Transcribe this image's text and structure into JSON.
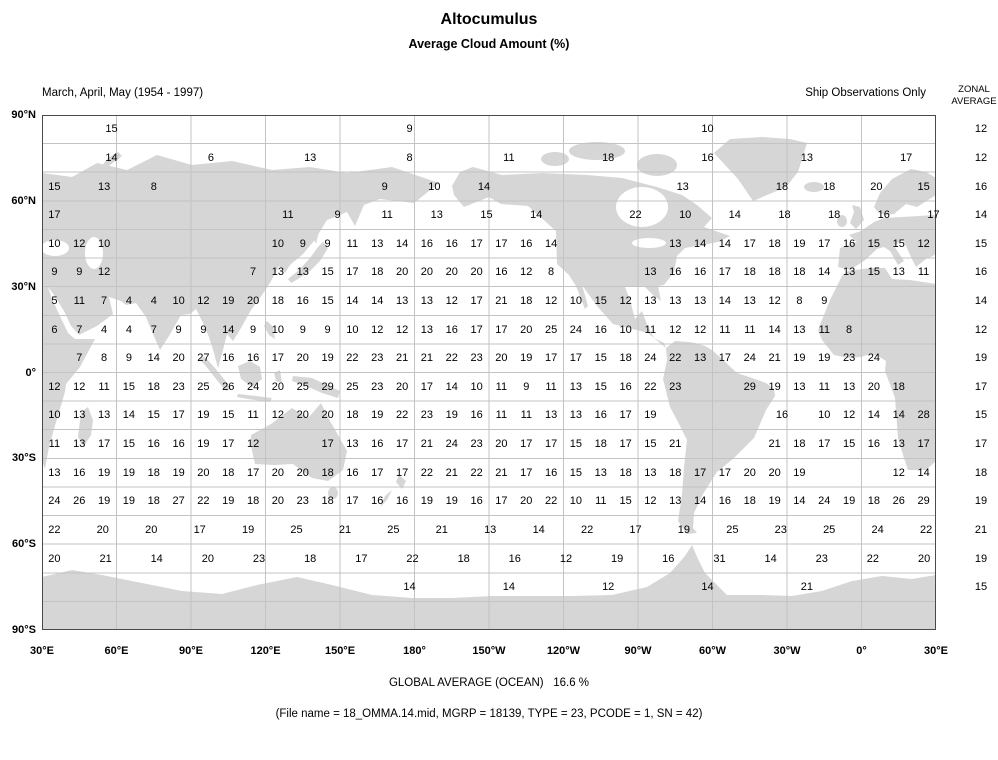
{
  "header": {
    "title": "Altocumulus",
    "subtitle": "Average Cloud Amount (%)",
    "period_label": "March, April, May (1954 - 1997)",
    "source_label": "Ship Observations Only",
    "zonal_header_line1": "ZONAL",
    "zonal_header_line2": "AVERAGE"
  },
  "footer": {
    "global_average": "GLOBAL AVERAGE (OCEAN)   16.6 %",
    "file_info": "(File name = 18_OMMA.14.mid, MGRP = 18139, TYPE = 23, PCODE = 1, SN = 42)"
  },
  "chart_data": {
    "type": "heatmap",
    "title": "Altocumulus - Average Cloud Amount (%)",
    "units": "percent",
    "global_average_ocean_pct": 16.6,
    "grid_cell_deg": 10,
    "lon_start_deg_east": 30,
    "lat_tick_labels": [
      "90°N",
      "60°N",
      "30°N",
      "0°",
      "30°S",
      "60°S",
      "90°S"
    ],
    "lon_tick_labels": [
      "30°E",
      "60°E",
      "90°E",
      "120°E",
      "150°E",
      "180°",
      "150°W",
      "120°W",
      "90°W",
      "60°W",
      "30°W",
      "0°",
      "30°E"
    ],
    "rows": [
      {
        "lat_band": "85N",
        "zonal_average": 12,
        "clusters": [
          {
            "start": 2.3,
            "step": 12,
            "values": [
              15,
              9,
              10
            ]
          }
        ]
      },
      {
        "lat_band": "75N",
        "zonal_average": 12,
        "clusters": [
          {
            "start": 2.3,
            "step": 4,
            "values": [
              14,
              6,
              13,
              8,
              11,
              18,
              16,
              13,
              17
            ]
          }
        ]
      },
      {
        "lat_band": "65N",
        "zonal_average": 16,
        "clusters": [
          {
            "start": 0,
            "step": 2,
            "values": [
              15,
              13,
              8
            ]
          },
          {
            "start": 13.3,
            "step": 2,
            "values": [
              9,
              10,
              14
            ]
          },
          {
            "start": 25.3,
            "values": [
              13
            ]
          },
          {
            "start": 29.3,
            "step": 1.9,
            "values": [
              18,
              18,
              20,
              15
            ]
          }
        ]
      },
      {
        "lat_band": "55N",
        "zonal_average": 14,
        "clusters": [
          {
            "start": 0,
            "values": [
              17
            ]
          },
          {
            "start": 9.4,
            "step": 2,
            "values": [
              11,
              9,
              11,
              13,
              15,
              14
            ]
          },
          {
            "start": 23.4,
            "step": 2,
            "values": [
              22,
              10,
              14,
              18,
              18,
              16,
              17
            ]
          }
        ]
      },
      {
        "lat_band": "45N",
        "zonal_average": 15,
        "clusters": [
          {
            "start": 0,
            "values": [
              10,
              12,
              10
            ]
          },
          {
            "start": 9,
            "values": [
              10,
              9,
              9,
              11,
              13,
              14,
              16,
              16,
              17,
              17,
              16,
              14
            ]
          },
          {
            "start": 25,
            "values": [
              13,
              14,
              14,
              17,
              18,
              19,
              17,
              16,
              15,
              15,
              12
            ]
          }
        ]
      },
      {
        "lat_band": "35N",
        "zonal_average": 16,
        "clusters": [
          {
            "start": 0,
            "values": [
              9,
              9,
              12
            ]
          },
          {
            "start": 8,
            "values": [
              7,
              13,
              13,
              15,
              17,
              18,
              20,
              20,
              20,
              20,
              16,
              12,
              8
            ]
          },
          {
            "start": 24,
            "values": [
              13,
              16,
              16,
              17,
              18,
              18,
              18,
              14,
              13,
              15,
              13,
              11
            ]
          }
        ]
      },
      {
        "lat_band": "25N",
        "zonal_average": 14,
        "clusters": [
          {
            "start": 0,
            "values": [
              5,
              11,
              7,
              4,
              4,
              10,
              12,
              19,
              20,
              18,
              16,
              15,
              14,
              14,
              13,
              13,
              12,
              17,
              21,
              18,
              12,
              10,
              15,
              12,
              13,
              13,
              13,
              14,
              13,
              12,
              8,
              9
            ]
          }
        ]
      },
      {
        "lat_band": "15N",
        "zonal_average": 12,
        "clusters": [
          {
            "start": 0,
            "values": [
              6,
              7,
              4,
              4,
              7,
              9,
              9,
              14,
              9,
              10,
              9,
              9,
              10,
              12,
              12,
              13,
              16,
              17,
              17,
              20,
              25,
              24,
              16,
              10,
              11,
              12,
              12,
              11,
              11,
              14,
              13,
              11,
              8
            ]
          }
        ]
      },
      {
        "lat_band": "5N",
        "zonal_average": 19,
        "clusters": [
          {
            "start": 1,
            "values": [
              7,
              8,
              9,
              14,
              20,
              27,
              16,
              16,
              17,
              20,
              19,
              22,
              23,
              21,
              21,
              22,
              23,
              20,
              19,
              17,
              17,
              15,
              18,
              24,
              22,
              13,
              17,
              24,
              21,
              19,
              19,
              23,
              24
            ]
          }
        ]
      },
      {
        "lat_band": "5S",
        "zonal_average": 17,
        "clusters": [
          {
            "start": 0,
            "values": [
              12,
              12,
              11,
              15,
              18,
              23,
              25,
              26,
              24,
              20,
              25,
              29,
              25,
              23,
              20,
              17,
              14,
              10,
              11,
              9,
              11,
              13,
              15,
              16,
              22,
              23
            ]
          },
          {
            "start": 28,
            "values": [
              29,
              19,
              13,
              11,
              13,
              20,
              18
            ]
          }
        ]
      },
      {
        "lat_band": "15S",
        "zonal_average": 15,
        "clusters": [
          {
            "start": 0,
            "values": [
              10,
              13,
              13,
              14,
              15,
              17,
              19,
              15,
              11,
              12,
              20,
              20,
              18,
              19,
              22,
              23,
              19,
              16,
              11,
              11,
              13,
              13,
              16,
              17,
              19
            ]
          },
          {
            "start": 29.3,
            "values": [
              16
            ]
          },
          {
            "start": 31,
            "values": [
              10,
              12,
              14,
              14,
              28
            ]
          }
        ]
      },
      {
        "lat_band": "25S",
        "zonal_average": 17,
        "clusters": [
          {
            "start": 0,
            "values": [
              11,
              13,
              17,
              15,
              16,
              16,
              19,
              17,
              12
            ]
          },
          {
            "start": 11,
            "values": [
              17,
              13,
              16,
              17,
              21,
              24,
              23,
              20,
              17,
              17,
              15,
              18,
              17,
              15,
              21
            ]
          },
          {
            "start": 29,
            "values": [
              21,
              18,
              17,
              15,
              16,
              13,
              17
            ]
          }
        ]
      },
      {
        "lat_band": "35S",
        "zonal_average": 18,
        "clusters": [
          {
            "start": 0,
            "values": [
              13,
              16,
              19,
              19,
              18,
              19,
              20,
              18,
              17,
              20,
              20,
              18,
              16,
              17,
              17,
              22,
              21,
              22,
              21,
              17,
              16,
              15,
              13,
              18,
              13,
              18,
              17,
              17,
              20,
              20,
              19
            ]
          },
          {
            "start": 34,
            "values": [
              12,
              14
            ]
          }
        ]
      },
      {
        "lat_band": "45S",
        "zonal_average": 19,
        "clusters": [
          {
            "start": 0,
            "values": [
              24,
              26,
              19,
              19,
              18,
              27,
              22,
              19,
              18,
              20,
              23,
              18,
              17,
              16,
              16,
              19,
              19,
              16,
              17,
              20,
              22,
              10,
              11,
              15,
              12,
              13,
              14,
              16,
              18,
              19,
              14,
              24,
              19,
              18,
              26,
              29
            ]
          }
        ]
      },
      {
        "lat_band": "55S",
        "zonal_average": 21,
        "clusters": [
          {
            "start": 0,
            "step": 1.95,
            "values": [
              22,
              20,
              20,
              17,
              19,
              25,
              21,
              25,
              21,
              13,
              14,
              22,
              17,
              19,
              25,
              23,
              25,
              24,
              22
            ]
          }
        ]
      },
      {
        "lat_band": "65S",
        "zonal_average": 19,
        "clusters": [
          {
            "start": 0,
            "step": 2.06,
            "values": [
              20,
              21,
              14,
              20,
              23,
              18,
              17,
              22,
              18,
              16,
              12,
              19,
              16,
              31,
              14,
              23,
              22,
              20
            ]
          }
        ]
      },
      {
        "lat_band": "75S",
        "zonal_average": 15,
        "clusters": [
          {
            "start": 14.3,
            "step": 4,
            "values": [
              14,
              14,
              12,
              14,
              21
            ]
          }
        ]
      }
    ]
  }
}
